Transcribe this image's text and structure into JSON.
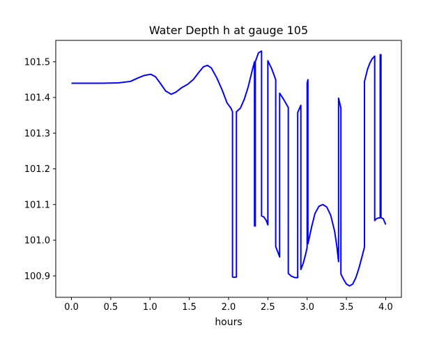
{
  "chart_data": {
    "type": "line",
    "title": "Water Depth h at gauge 105",
    "xlabel": "hours",
    "ylabel": "",
    "xlim": [
      -0.2,
      4.2
    ],
    "ylim": [
      100.84,
      101.56
    ],
    "xticks": [
      0.0,
      0.5,
      1.0,
      1.5,
      2.0,
      2.5,
      3.0,
      3.5,
      4.0
    ],
    "xtick_labels": [
      "0.0",
      "0.5",
      "1.0",
      "1.5",
      "2.0",
      "2.5",
      "3.0",
      "3.5",
      "4.0"
    ],
    "yticks": [
      100.9,
      101.0,
      101.1,
      101.2,
      101.3,
      101.4,
      101.5
    ],
    "ytick_labels": [
      "100.9",
      "101.0",
      "101.1",
      "101.2",
      "101.3",
      "101.4",
      "101.5"
    ],
    "grid": false,
    "series": [
      {
        "color": "#0000ff",
        "points": [
          [
            0.0,
            101.44
          ],
          [
            0.2,
            101.44
          ],
          [
            0.4,
            101.44
          ],
          [
            0.6,
            101.441
          ],
          [
            0.75,
            101.445
          ],
          [
            0.85,
            101.455
          ],
          [
            0.93,
            101.462
          ],
          [
            1.01,
            101.465
          ],
          [
            1.07,
            101.458
          ],
          [
            1.13,
            101.44
          ],
          [
            1.2,
            101.418
          ],
          [
            1.27,
            101.409
          ],
          [
            1.33,
            101.415
          ],
          [
            1.4,
            101.427
          ],
          [
            1.48,
            101.437
          ],
          [
            1.55,
            101.45
          ],
          [
            1.62,
            101.47
          ],
          [
            1.68,
            101.486
          ],
          [
            1.73,
            101.49
          ],
          [
            1.78,
            101.483
          ],
          [
            1.85,
            101.455
          ],
          [
            1.92,
            101.42
          ],
          [
            1.98,
            101.385
          ],
          [
            2.03,
            101.37
          ],
          [
            2.05,
            101.36
          ],
          [
            2.05,
            100.897
          ],
          [
            2.07,
            100.896
          ],
          [
            2.1,
            100.897
          ],
          [
            2.1,
            101.36
          ],
          [
            2.15,
            101.37
          ],
          [
            2.2,
            101.395
          ],
          [
            2.25,
            101.43
          ],
          [
            2.3,
            101.475
          ],
          [
            2.33,
            101.5
          ],
          [
            2.33,
            101.04
          ],
          [
            2.34,
            101.04
          ],
          [
            2.34,
            101.5
          ],
          [
            2.38,
            101.525
          ],
          [
            2.42,
            101.53
          ],
          [
            2.42,
            101.068
          ],
          [
            2.45,
            101.065
          ],
          [
            2.48,
            101.055
          ],
          [
            2.5,
            101.043
          ],
          [
            2.5,
            101.503
          ],
          [
            2.55,
            101.48
          ],
          [
            2.6,
            101.45
          ],
          [
            2.6,
            100.982
          ],
          [
            2.63,
            100.965
          ],
          [
            2.65,
            100.953
          ],
          [
            2.65,
            101.412
          ],
          [
            2.7,
            101.395
          ],
          [
            2.76,
            101.372
          ],
          [
            2.76,
            100.907
          ],
          [
            2.8,
            100.899
          ],
          [
            2.85,
            100.895
          ],
          [
            2.88,
            100.895
          ],
          [
            2.88,
            101.358
          ],
          [
            2.9,
            101.368
          ],
          [
            2.92,
            101.378
          ],
          [
            2.92,
            100.918
          ],
          [
            2.95,
            100.935
          ],
          [
            2.98,
            100.96
          ],
          [
            3.0,
            100.98
          ],
          [
            3.0,
            101.44
          ],
          [
            3.01,
            101.45
          ],
          [
            3.01,
            100.99
          ],
          [
            3.03,
            101.01
          ],
          [
            3.06,
            101.04
          ],
          [
            3.1,
            101.075
          ],
          [
            3.15,
            101.095
          ],
          [
            3.2,
            101.1
          ],
          [
            3.25,
            101.093
          ],
          [
            3.3,
            101.07
          ],
          [
            3.35,
            101.025
          ],
          [
            3.38,
            100.98
          ],
          [
            3.4,
            100.94
          ],
          [
            3.4,
            101.398
          ],
          [
            3.43,
            101.37
          ],
          [
            3.43,
            100.905
          ],
          [
            3.47,
            100.888
          ],
          [
            3.5,
            100.877
          ],
          [
            3.54,
            100.872
          ],
          [
            3.58,
            100.877
          ],
          [
            3.62,
            100.895
          ],
          [
            3.66,
            100.922
          ],
          [
            3.7,
            100.955
          ],
          [
            3.73,
            100.981
          ],
          [
            3.73,
            101.445
          ],
          [
            3.77,
            101.48
          ],
          [
            3.8,
            101.497
          ],
          [
            3.83,
            101.509
          ],
          [
            3.86,
            101.516
          ],
          [
            3.86,
            101.055
          ],
          [
            3.88,
            101.06
          ],
          [
            3.9,
            101.062
          ],
          [
            3.93,
            101.063
          ],
          [
            3.93,
            101.52
          ],
          [
            3.94,
            101.52
          ],
          [
            3.94,
            101.063
          ],
          [
            3.97,
            101.06
          ],
          [
            4.0,
            101.044
          ]
        ]
      }
    ]
  }
}
